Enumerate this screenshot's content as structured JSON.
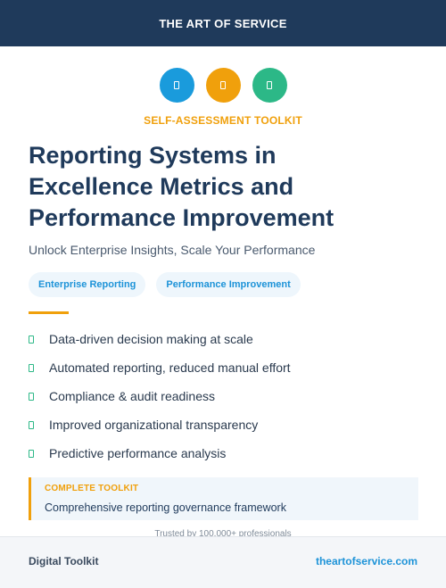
{
  "header": {
    "brand": "THE ART OF SERVICE"
  },
  "icons": [
    {
      "name": "document-icon",
      "color": "#1a9bdc"
    },
    {
      "name": "document-icon",
      "color": "#f0a00c"
    },
    {
      "name": "document-icon",
      "color": "#2cb887"
    }
  ],
  "kicker": "SELF-ASSESSMENT TOOLKIT",
  "title_lines": [
    "Reporting Systems in",
    "Excellence Metrics and",
    "Performance Improvement"
  ],
  "subtitle": "Unlock Enterprise Insights, Scale Your Performance",
  "tags": [
    "Enterprise Reporting",
    "Performance Improvement"
  ],
  "benefits": [
    "Data-driven decision making at scale",
    "Automated reporting, reduced manual effort",
    "Compliance & audit readiness",
    "Improved organizational transparency",
    "Predictive performance analysis"
  ],
  "callout": {
    "label": "COMPLETE TOOLKIT",
    "text": "Comprehensive reporting governance framework"
  },
  "trusted": "Trusted by 100,000+ professionals",
  "footer": {
    "left": "Digital Toolkit",
    "right": "theartofservice.com"
  },
  "colors": {
    "navy": "#1f3a5b",
    "accent_orange": "#f0a00c",
    "accent_blue": "#1d93d8",
    "accent_green": "#2cb887"
  }
}
